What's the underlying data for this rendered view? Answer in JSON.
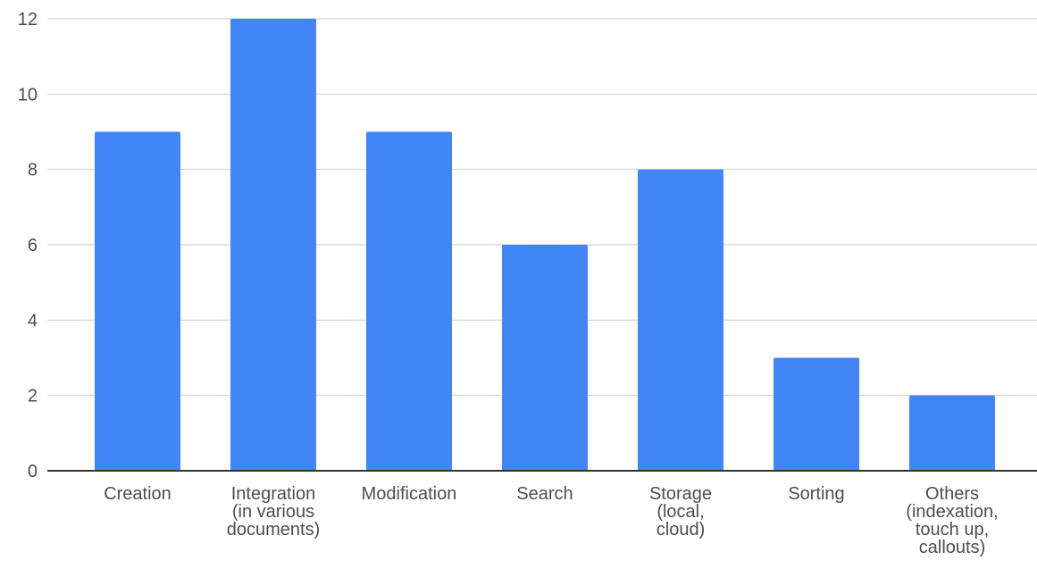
{
  "chart_data": {
    "type": "bar",
    "title": "",
    "xlabel": "",
    "ylabel": "",
    "categories": [
      [
        "Creation"
      ],
      [
        "Integration",
        "(in various",
        "documents)"
      ],
      [
        "Modification"
      ],
      [
        "Search"
      ],
      [
        "Storage",
        "(local,",
        "cloud)"
      ],
      [
        "Sorting"
      ],
      [
        "Others",
        "(indexation,",
        "touch up,",
        "callouts)"
      ]
    ],
    "values": [
      9,
      12,
      9,
      6,
      8,
      3,
      2
    ],
    "ylim": [
      0,
      12
    ],
    "yticks": [
      "0",
      "2",
      "4",
      "6",
      "8",
      "10",
      "12"
    ],
    "grid": true,
    "legend": "none",
    "colors": {
      "bar": "#4285f4",
      "grid": "#cccccc",
      "axis": "#333333",
      "text": "#4d4d4d"
    }
  }
}
